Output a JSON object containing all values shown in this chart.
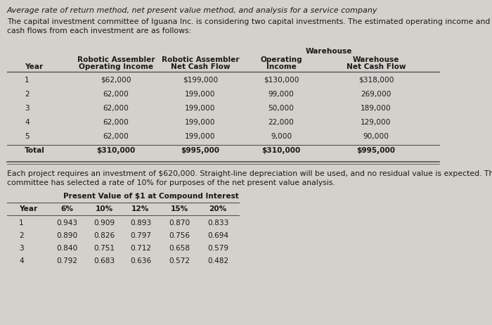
{
  "title": "Average rate of return method, net present value method, and analysis for a service company",
  "paragraph1": "The capital investment committee of Iguana Inc. is considering two capital investments. The estimated operating income and net",
  "paragraph2": "cash flows from each investment are as follows:",
  "table1_rows": [
    [
      "1",
      "$62,000",
      "$199,000",
      "$130,000",
      "$318,000"
    ],
    [
      "2",
      "62,000",
      "199,000",
      "99,000",
      "269,000"
    ],
    [
      "3",
      "62,000",
      "199,000",
      "50,000",
      "189,000"
    ],
    [
      "4",
      "62,000",
      "199,000",
      "22,000",
      "129,000"
    ],
    [
      "5",
      "62,000",
      "199,000",
      "9,000",
      "90,000"
    ],
    [
      "Total",
      "$310,000",
      "$995,000",
      "$310,000",
      "$995,000"
    ]
  ],
  "paragraph3": "Each project requires an investment of $620,000. Straight-line depreciation will be used, and no residual value is expected. The",
  "paragraph4": "committee has selected a rate of 10% for purposes of the net present value analysis.",
  "table2_title": "Present Value of $1 at Compound Interest",
  "table2_headers": [
    "Year",
    "6%",
    "10%",
    "12%",
    "15%",
    "20%"
  ],
  "table2_rows": [
    [
      "1",
      "0.943",
      "0.909",
      "0.893",
      "0.870",
      "0.833"
    ],
    [
      "2",
      "0.890",
      "0.826",
      "0.797",
      "0.756",
      "0.694"
    ],
    [
      "3",
      "0.840",
      "0.751",
      "0.712",
      "0.658",
      "0.579"
    ],
    [
      "4",
      "0.792",
      "0.683",
      "0.636",
      "0.572",
      "0.482"
    ]
  ],
  "bg_color": "#d4d0cb",
  "text_color": "#1a1a1a",
  "line_color": "#555555",
  "fs_title": 8.0,
  "fs_body": 7.8,
  "fs_table": 7.6
}
